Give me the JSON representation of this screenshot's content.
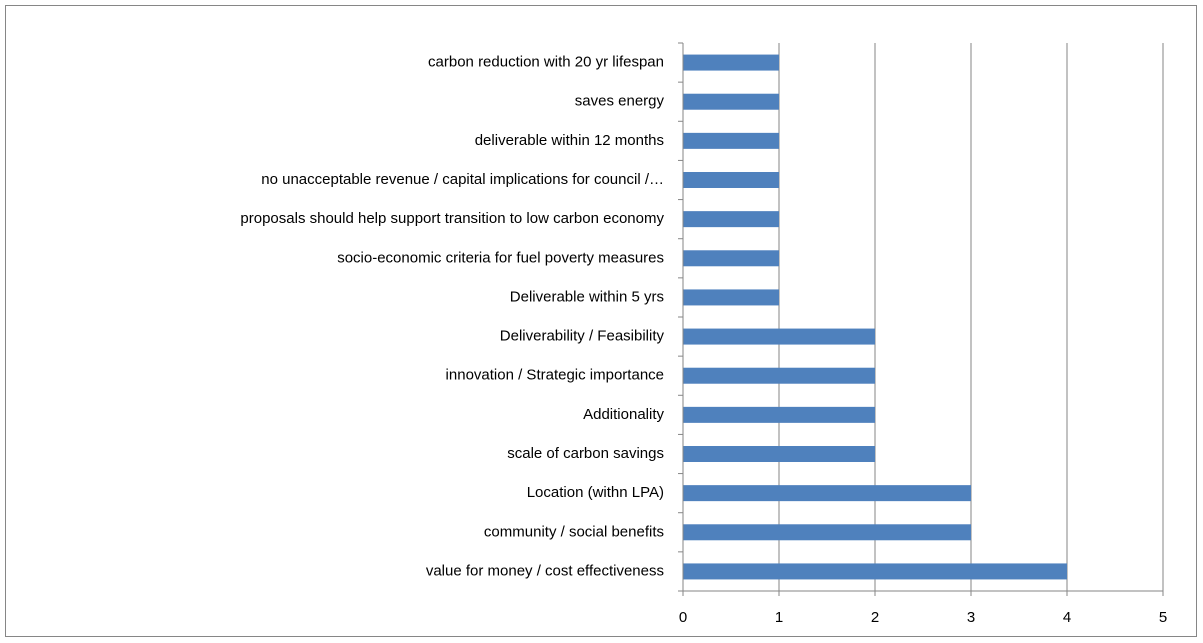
{
  "chart_data": {
    "type": "bar",
    "orientation": "horizontal",
    "categories": [
      "carbon reduction with 20 yr lifespan",
      "saves energy",
      "deliverable within 12 months",
      "no unacceptable revenue / capital implications for council /…",
      "proposals should help support transition to low carbon economy",
      "socio-economic criteria for fuel poverty measures",
      "Deliverable within 5 yrs",
      "Deliverability / Feasibility",
      "innovation / Strategic importance",
      "Additionality",
      "scale of carbon savings",
      "Location (withn LPA)",
      "community / social benefits",
      "value for money / cost effectiveness"
    ],
    "values": [
      1,
      1,
      1,
      1,
      1,
      1,
      1,
      2,
      2,
      2,
      2,
      3,
      3,
      4
    ],
    "color": "#4f81bd",
    "xlim": [
      0,
      5
    ],
    "xticks": [
      0,
      1,
      2,
      3,
      4,
      5
    ],
    "grid": true
  }
}
